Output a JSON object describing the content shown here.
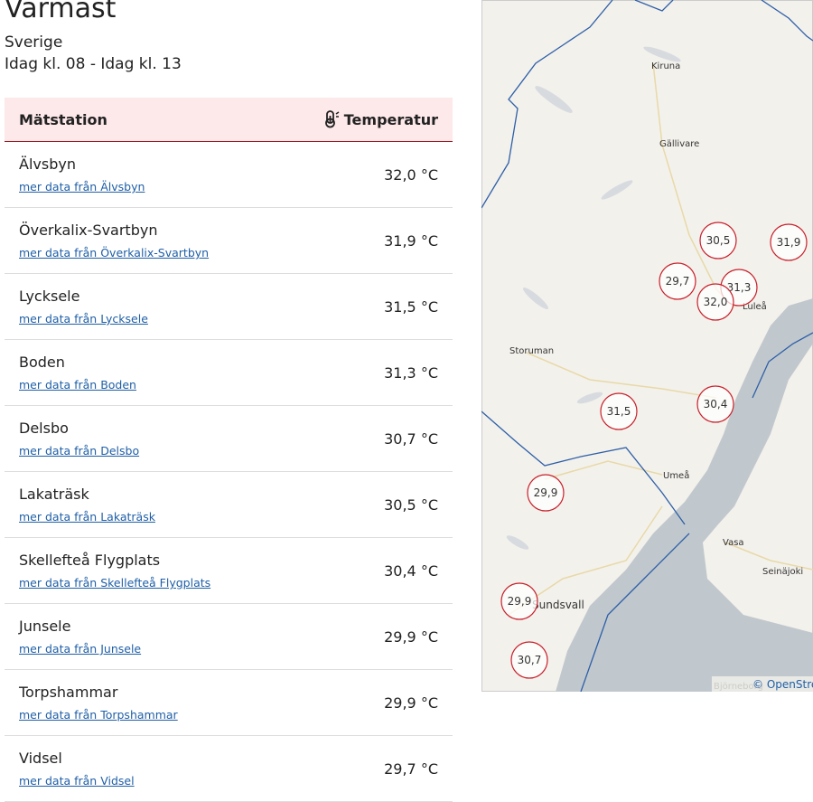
{
  "header": {
    "title": "Varmast",
    "region": "Sverige",
    "period": "Idag kl. 08 - Idag kl. 13"
  },
  "table": {
    "columns": [
      "Mätstation",
      "Temperatur"
    ],
    "rows": [
      {
        "station": "Älvsbyn",
        "link": "mer data från Älvsbyn",
        "temperature": "32,0 °C"
      },
      {
        "station": "Överkalix-Svartbyn",
        "link": "mer data från Överkalix-Svartbyn",
        "temperature": "31,9 °C"
      },
      {
        "station": "Lycksele",
        "link": "mer data från Lycksele",
        "temperature": "31,5 °C"
      },
      {
        "station": "Boden",
        "link": "mer data från Boden",
        "temperature": "31,3 °C"
      },
      {
        "station": "Delsbo",
        "link": "mer data från Delsbo",
        "temperature": "30,7 °C"
      },
      {
        "station": "Lakaträsk",
        "link": "mer data från Lakaträsk",
        "temperature": "30,5 °C"
      },
      {
        "station": "Skellefteå Flygplats",
        "link": "mer data från Skellefteå Flygplats",
        "temperature": "30,4 °C"
      },
      {
        "station": "Junsele",
        "link": "mer data från Junsele",
        "temperature": "29,9 °C"
      },
      {
        "station": "Torpshammar",
        "link": "mer data från Torpshammar",
        "temperature": "29,9 °C"
      },
      {
        "station": "Vidsel",
        "link": "mer data från Vidsel",
        "temperature": "29,7 °C"
      }
    ]
  },
  "map": {
    "places": [
      "Kiruna",
      "Gällivare",
      "Luleå",
      "Storuman",
      "Umeå",
      "Vasa",
      "Seinäjoki",
      "Sundsvall",
      "Björneborg"
    ],
    "markers": [
      "30,5",
      "31,9",
      "29,7",
      "31,3",
      "32,0",
      "30,4",
      "31,5",
      "29,9",
      "29,9",
      "30,7"
    ],
    "attribution": "© OpenStreetMap"
  }
}
